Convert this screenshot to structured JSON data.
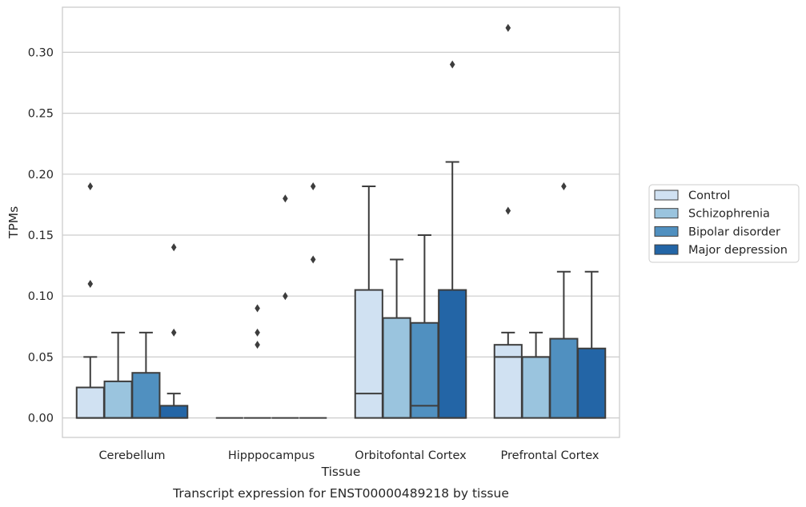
{
  "chart_data": {
    "type": "box",
    "title": "",
    "caption": "Transcript expression for ENST00000489218 by tissue",
    "xlabel": "Tissue",
    "ylabel": "TPMs",
    "ylim": [
      -0.016,
      0.337
    ],
    "yticks": [
      0.0,
      0.05,
      0.1,
      0.15,
      0.2,
      0.25,
      0.3
    ],
    "ytick_labels": [
      "0.00",
      "0.05",
      "0.10",
      "0.15",
      "0.20",
      "0.25",
      "0.30"
    ],
    "grid": "horizontal",
    "legend_position": "right",
    "categories": [
      "Cerebellum",
      "Hipppocampus",
      "Orbitofontal Cortex",
      "Prefrontal Cortex"
    ],
    "series": [
      {
        "name": "Control",
        "color": "#d0e1f2",
        "boxes": [
          {
            "q1": 0.0,
            "median": 0.0,
            "q3": 0.025,
            "whislo": 0.0,
            "whishi": 0.05,
            "fliers": [
              0.11,
              0.19
            ]
          },
          {
            "q1": 0.0,
            "median": 0.0,
            "q3": 0.0,
            "whislo": 0.0,
            "whishi": 0.0,
            "fliers": []
          },
          {
            "q1": 0.0,
            "median": 0.02,
            "q3": 0.105,
            "whislo": 0.0,
            "whishi": 0.19,
            "fliers": []
          },
          {
            "q1": 0.0,
            "median": 0.05,
            "q3": 0.06,
            "whislo": 0.0,
            "whishi": 0.07,
            "fliers": [
              0.17,
              0.32
            ]
          }
        ]
      },
      {
        "name": "Schizophrenia",
        "color": "#9ac4de",
        "boxes": [
          {
            "q1": 0.0,
            "median": 0.0,
            "q3": 0.03,
            "whislo": 0.0,
            "whishi": 0.07,
            "fliers": []
          },
          {
            "q1": 0.0,
            "median": 0.0,
            "q3": 0.0,
            "whislo": 0.0,
            "whishi": 0.0,
            "fliers": [
              0.06,
              0.07,
              0.09
            ]
          },
          {
            "q1": 0.0,
            "median": 0.0,
            "q3": 0.082,
            "whislo": 0.0,
            "whishi": 0.13,
            "fliers": []
          },
          {
            "q1": 0.0,
            "median": 0.05,
            "q3": 0.05,
            "whislo": 0.0,
            "whishi": 0.07,
            "fliers": []
          }
        ]
      },
      {
        "name": "Bipolar disorder",
        "color": "#5090c0",
        "boxes": [
          {
            "q1": 0.0,
            "median": 0.0,
            "q3": 0.037,
            "whislo": 0.0,
            "whishi": 0.07,
            "fliers": []
          },
          {
            "q1": 0.0,
            "median": 0.0,
            "q3": 0.0,
            "whislo": 0.0,
            "whishi": 0.0,
            "fliers": [
              0.1,
              0.18
            ]
          },
          {
            "q1": 0.0,
            "median": 0.01,
            "q3": 0.078,
            "whislo": 0.0,
            "whishi": 0.15,
            "fliers": []
          },
          {
            "q1": 0.0,
            "median": 0.0,
            "q3": 0.065,
            "whislo": 0.0,
            "whishi": 0.12,
            "fliers": [
              0.19
            ]
          }
        ]
      },
      {
        "name": "Major depression",
        "color": "#2365a6",
        "boxes": [
          {
            "q1": 0.0,
            "median": 0.0,
            "q3": 0.01,
            "whislo": 0.0,
            "whishi": 0.02,
            "fliers": [
              0.07,
              0.14
            ]
          },
          {
            "q1": 0.0,
            "median": 0.0,
            "q3": 0.0,
            "whislo": 0.0,
            "whishi": 0.0,
            "fliers": [
              0.13,
              0.19
            ]
          },
          {
            "q1": 0.0,
            "median": 0.0,
            "q3": 0.105,
            "whislo": 0.0,
            "whishi": 0.21,
            "fliers": [
              0.29
            ]
          },
          {
            "q1": 0.0,
            "median": 0.0,
            "q3": 0.057,
            "whislo": 0.0,
            "whishi": 0.12,
            "fliers": []
          }
        ]
      }
    ]
  }
}
